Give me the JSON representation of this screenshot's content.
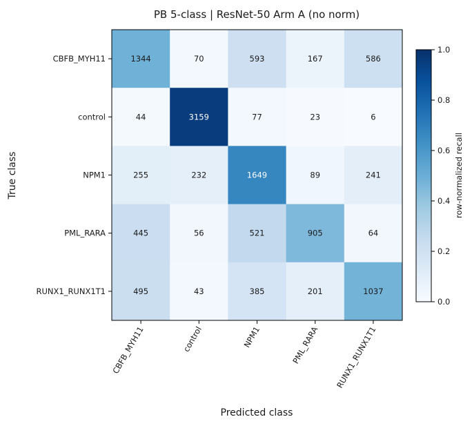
{
  "chart_data": {
    "type": "heatmap",
    "title": "PB 5-class | ResNet-50 Arm A (no norm)",
    "xlabel": "Predicted class",
    "ylabel": "True class",
    "classes": [
      "CBFB_MYH11",
      "control",
      "NPM1",
      "PML_RARA",
      "RUNX1_RUNX1T1"
    ],
    "matrix": [
      [
        1344,
        70,
        593,
        167,
        586
      ],
      [
        44,
        3159,
        77,
        23,
        6
      ],
      [
        255,
        232,
        1649,
        89,
        241
      ],
      [
        445,
        56,
        521,
        905,
        64
      ],
      [
        495,
        43,
        385,
        201,
        1037
      ]
    ],
    "colorbar": {
      "label": "row-normalized recall",
      "range": [
        0.0,
        1.0
      ],
      "ticks": [
        "0.0",
        "0.2",
        "0.4",
        "0.6",
        "0.8",
        "1.0"
      ],
      "colormap": "Blues"
    }
  }
}
